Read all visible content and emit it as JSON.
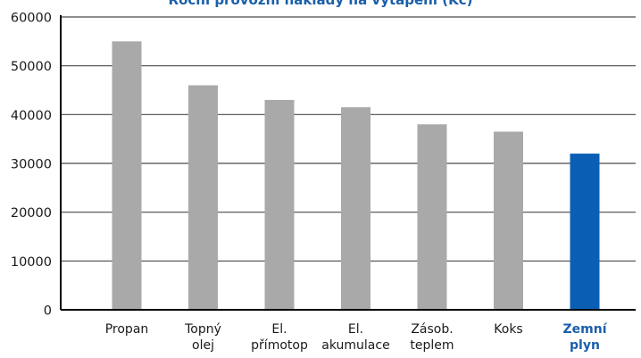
{
  "chart_data": {
    "type": "bar",
    "title_partial": "Roční provozní náklady na vytápění (Kč)",
    "categories": [
      [
        "Propan"
      ],
      [
        "Topný",
        "olej"
      ],
      [
        "El.",
        "přímotop"
      ],
      [
        "El.",
        "akumulace"
      ],
      [
        "Zásob.",
        "teplem"
      ],
      [
        "Koks"
      ],
      [
        "Zemní",
        "plyn"
      ]
    ],
    "values": [
      55000,
      46000,
      43000,
      41500,
      38000,
      36500,
      32000
    ],
    "highlight_index": 6,
    "ylim": [
      0,
      60000
    ],
    "yticks": [
      0,
      10000,
      20000,
      30000,
      40000,
      50000,
      60000
    ],
    "grid": true,
    "xlabel": "",
    "ylabel": "",
    "colors": {
      "bar": "#a9a9a9",
      "highlight": "#0a5fb4",
      "highlight_label": "#1a5faa",
      "grid": "#4a4a4a",
      "axis": "#000000",
      "text": "#1a1a1a"
    }
  }
}
